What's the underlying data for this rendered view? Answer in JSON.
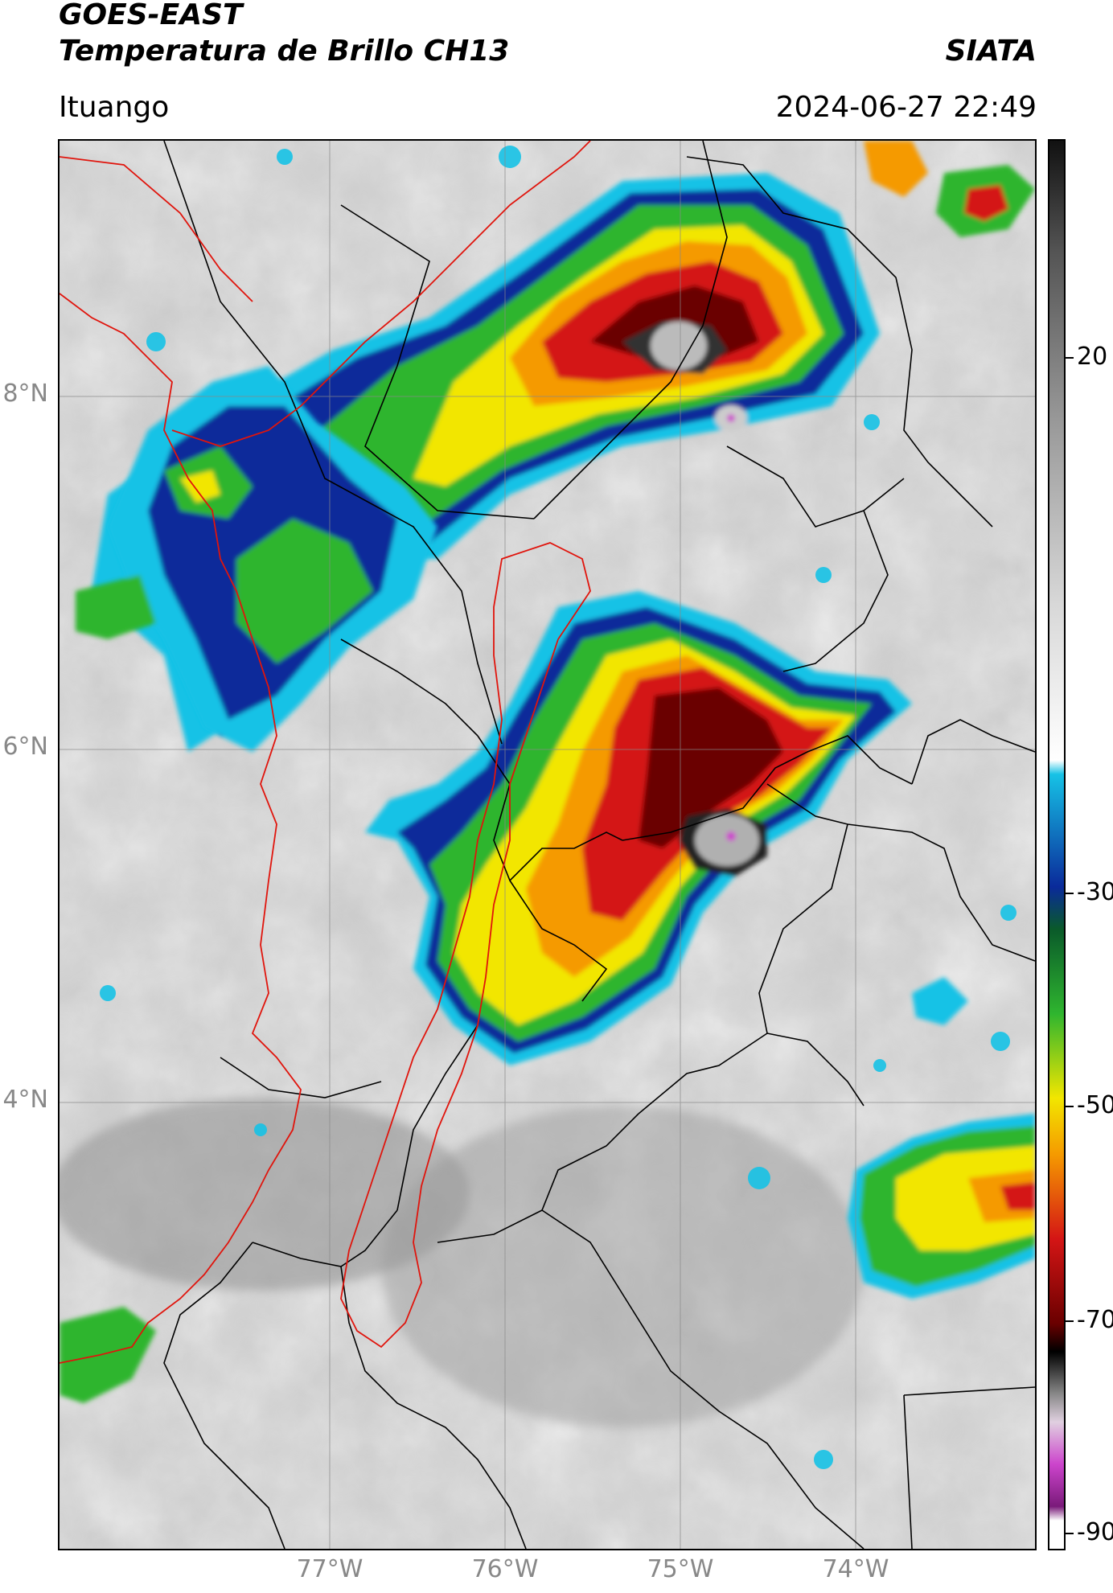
{
  "header": {
    "satellite": "GOES-EAST",
    "product": "Temperatura de Brillo CH13",
    "org": "SIATA",
    "region": "Ituango",
    "datetime": "2024-06-27 22:49"
  },
  "map": {
    "lat_labels": [
      "8°N",
      "6°N",
      "4°N"
    ],
    "lon_labels": [
      "77°W",
      "76°W",
      "75°W",
      "74°W"
    ],
    "grid": true,
    "overlays": [
      "red-boundary-lines",
      "black-boundary-lines"
    ]
  },
  "colorbar": {
    "tick_labels": [
      "20",
      "-30",
      "-50",
      "-70",
      "-90"
    ],
    "range": [
      -90,
      40
    ],
    "colors": {
      "warm": "#ffffff",
      "cyan": "#16c2e6",
      "blue": "#0a2a9a",
      "green": "#2fb52f",
      "yellow": "#f2e600",
      "orange": "#f59a00",
      "red": "#d41515",
      "darkred": "#6a0000",
      "black": "#000000",
      "magenta": "#cc44cc"
    }
  }
}
